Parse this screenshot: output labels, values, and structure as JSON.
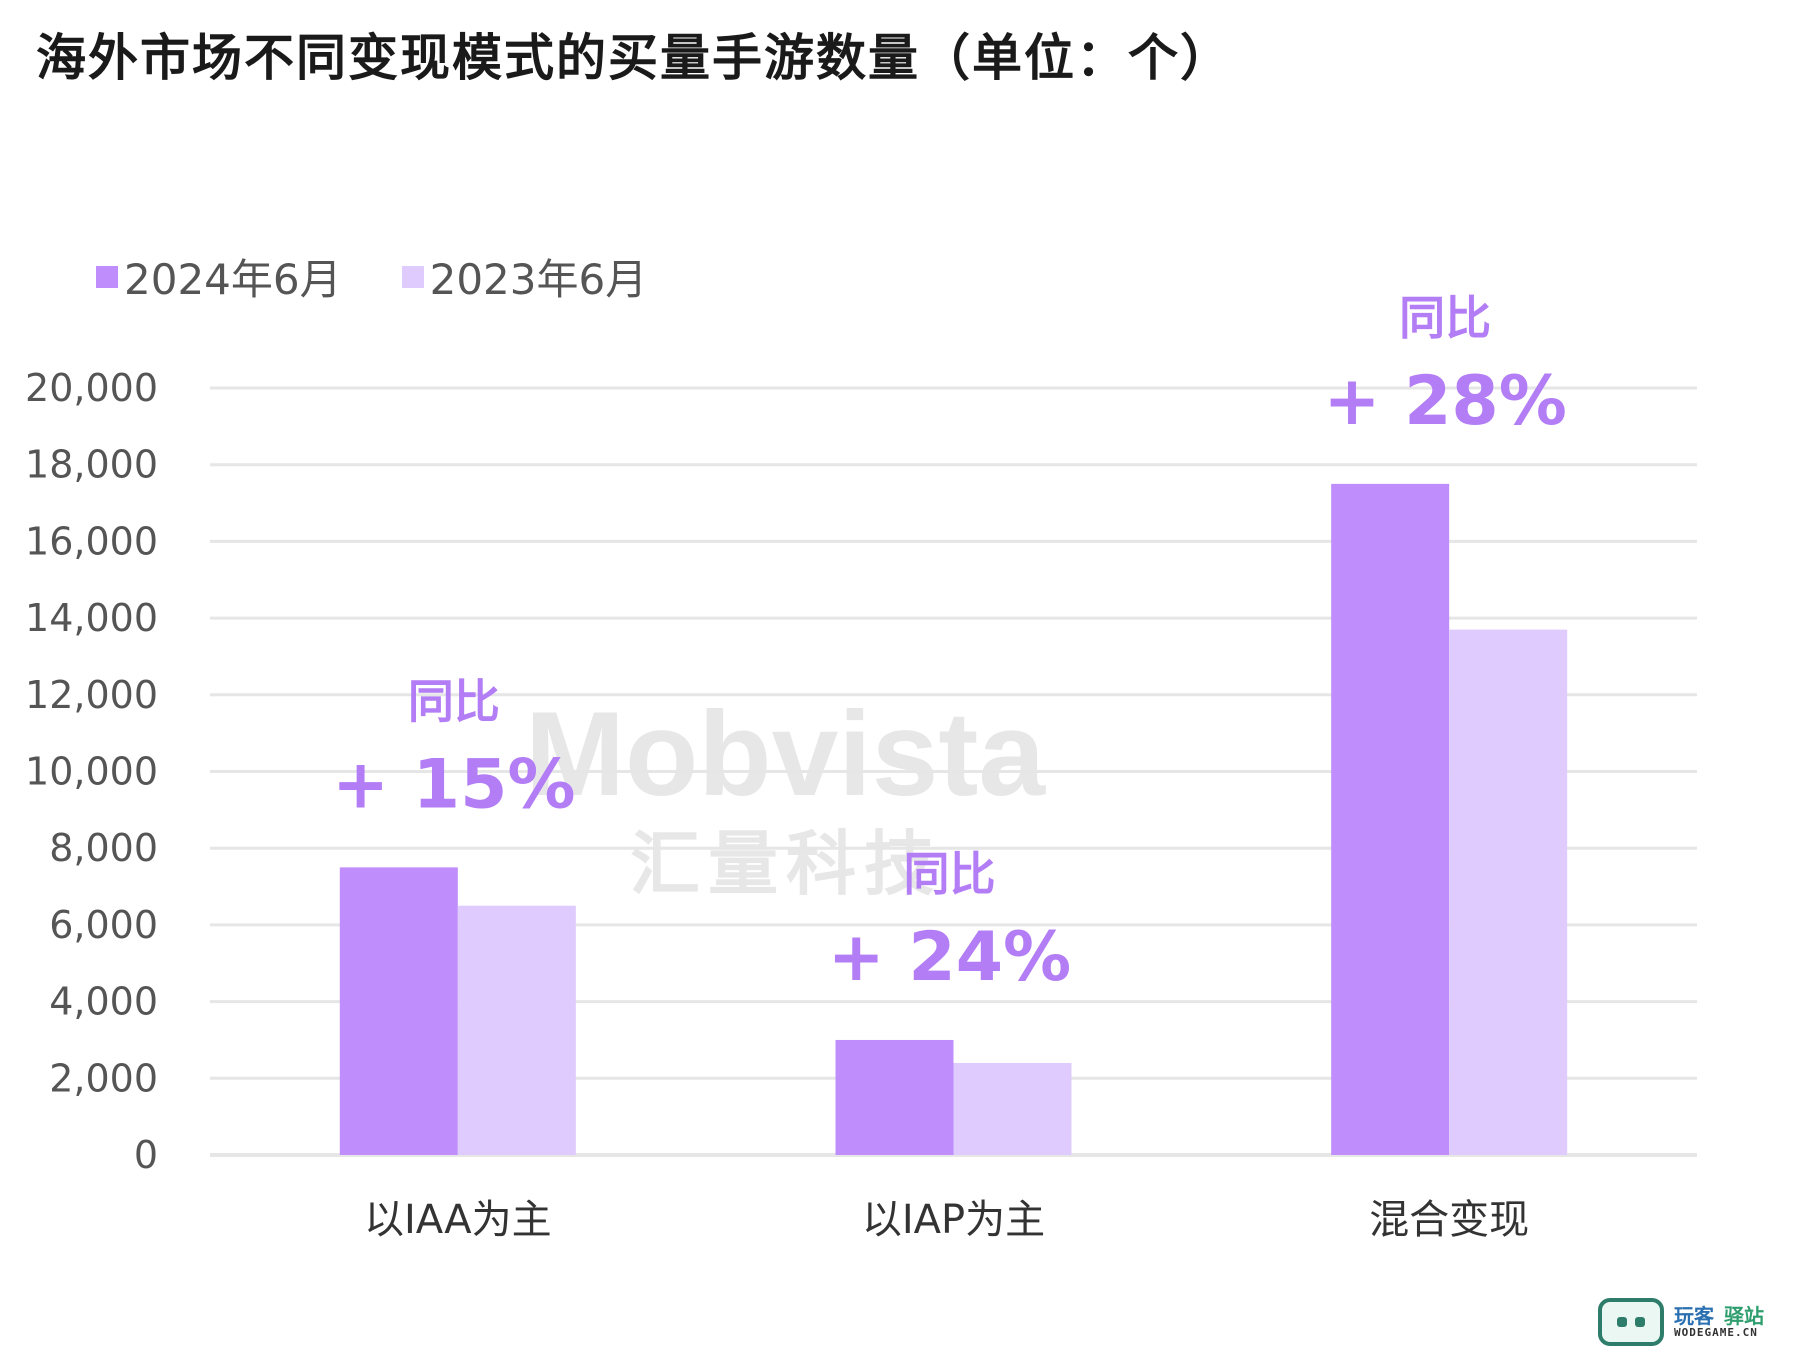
{
  "chart_data": {
    "type": "bar",
    "title": "海外市场不同变现模式的买量手游数量（单位：个）",
    "categories": [
      "以IAA为主",
      "以IAP为主",
      "混合变现"
    ],
    "series": [
      {
        "name": "2024年6月",
        "values": [
          7500,
          3000,
          17500
        ],
        "color": "#BF8DFC"
      },
      {
        "name": "2023年6月",
        "values": [
          6500,
          2400,
          13700
        ],
        "color": "#DFCBFD"
      }
    ],
    "ylim": [
      0,
      20000
    ],
    "yticks": [
      0,
      2000,
      4000,
      6000,
      8000,
      10000,
      12000,
      14000,
      16000,
      18000,
      20000
    ],
    "ytick_labels": [
      "0",
      "2,000",
      "4,000",
      "6,000",
      "8,000",
      "10,000",
      "12,000",
      "14,000",
      "16,000",
      "18,000",
      "20,000"
    ],
    "grid": true,
    "legend_position": "top-left",
    "annotations": [
      {
        "category": "以IAA为主",
        "label": "同比",
        "value": "+ 15%"
      },
      {
        "category": "以IAP为主",
        "label": "同比",
        "value": "+ 24%"
      },
      {
        "category": "混合变现",
        "label": "同比",
        "value": "+ 28%"
      }
    ],
    "watermark": {
      "text": "Mobvista",
      "subtext": "汇量科技"
    },
    "annotation_color": "#B27DF5",
    "grid_color": "#e6e6e6"
  },
  "footer_logo": {
    "cn_left": "玩客",
    "cn_right": "驿站",
    "en": "WODEGAME.CN",
    "icon": "robot-face-icon"
  }
}
